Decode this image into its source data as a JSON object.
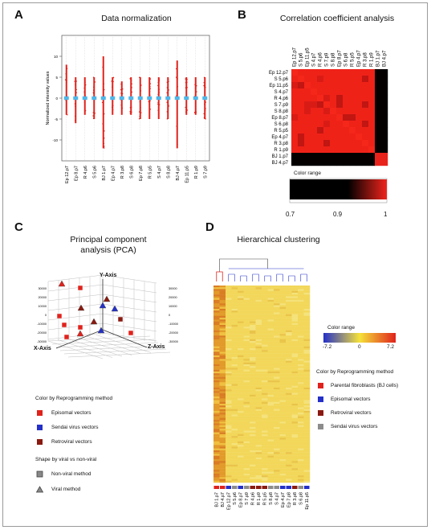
{
  "panels": {
    "a": {
      "letter": "A",
      "title": "Data normalization",
      "ylabel": "Normalized intensity values"
    },
    "b": {
      "letter": "B",
      "title": "Correlation coefficient analysis",
      "color_range_label": "Color range",
      "color_range_ticks": [
        "0.7",
        "0.9",
        "1"
      ]
    },
    "c": {
      "letter": "C",
      "title_line1": "Principal component",
      "title_line2": "analysis (PCA)",
      "y_axis": "Y-Axis",
      "x_axis": "X-Axis",
      "z_axis": "Z-Axis",
      "color_legend_title": "Color by Reprogramming method",
      "color_legend": [
        {
          "label": "Episomal vectors",
          "color": "#e0221c"
        },
        {
          "label": "Sendai virus vectors",
          "color": "#2430c8"
        },
        {
          "label": "Retroviral vectors",
          "color": "#8a1a10"
        }
      ],
      "shape_legend_title": "Shape  by viral vs non-viral",
      "shape_legend": [
        {
          "label": "Non-viral method",
          "shape": "square"
        },
        {
          "label": "Viral method",
          "shape": "triangle"
        }
      ]
    },
    "d": {
      "letter": "D",
      "title": "Hierarchical clustering",
      "color_range_label": "Color range",
      "color_range_ticks": [
        "-7.2",
        "0",
        "7.2"
      ],
      "legend_title": "Color by Reprogramming method",
      "legend": [
        {
          "label": "Parental fibroblasts (BJ cells)",
          "color": "#e0221c"
        },
        {
          "label": "Episomal vectors",
          "color": "#2430c8"
        },
        {
          "label": "Retroviral vectors",
          "color": "#8a1a10"
        },
        {
          "label": "Sendai virus vectors",
          "color": "#8c8c8c"
        }
      ]
    }
  },
  "chart_data": [
    {
      "panel": "A",
      "type": "scatter",
      "title": "Data normalization",
      "ylabel": "Normalized intensity values",
      "yticks": [
        "-10",
        "-5",
        "0",
        "5",
        "10"
      ],
      "ylim": [
        -15,
        15
      ],
      "categories": [
        "Ep 12.p7",
        "Ep 8.p7",
        "R 4.p6",
        "S 5.p6",
        "BJ 1.p7",
        "Ep 4.p7",
        "R 3.p8",
        "S 6.p8",
        "Ep 7.p8",
        "R 5.p5",
        "S 4.p7",
        "S 8.p8",
        "BJ 4.p7",
        "Ep 11.p5",
        "R 1.p9",
        "S 7.p9"
      ],
      "median": [
        0,
        0,
        0,
        0,
        0,
        0,
        0,
        0,
        0,
        0,
        0,
        0,
        0,
        0,
        0,
        0
      ],
      "spread_low": [
        -4,
        -6,
        -4,
        -5,
        -12,
        -4,
        -4,
        -4,
        -5,
        -5,
        -5,
        -5,
        -12,
        -4,
        -4,
        -5
      ],
      "spread_high": [
        8,
        5,
        5,
        5,
        10,
        5,
        4,
        5,
        5,
        5,
        5,
        5,
        9,
        5,
        5,
        5
      ]
    },
    {
      "panel": "B",
      "type": "heatmap",
      "title": "Correlation coefficient analysis",
      "rows": [
        "Ep 12.p7",
        "S 5.p6",
        "Ep 11.p5",
        "S 4.p7",
        "R 4.p6",
        "S 7.p9",
        "S 8.p8",
        "Ep 8.p7",
        "S 6.p8",
        "R 5.p5",
        "Ep 4.p7",
        "R 3.p8",
        "R 1.p9",
        "BJ 1.p7",
        "BJ 4.p7"
      ],
      "columns": [
        "Ep 12.p7",
        "S 5.p6",
        "Ep 11.p5",
        "S 4.p7",
        "R 4.p6",
        "S 7.p9",
        "S 8.p8",
        "Ep 8.p7",
        "S 6.p8",
        "R 5.p5",
        "Ep 4.p7",
        "R 3.p8",
        "R 1.p9",
        "BJ 1.p7",
        "BJ 4.p7"
      ],
      "color_range": [
        0.7,
        1.0
      ],
      "color_ticks": [
        0.7,
        0.9,
        1
      ],
      "group_similarity": "iPSC samples correlate highly among each other (red); BJ parental fibroblast samples correlate only with each other"
    },
    {
      "panel": "C",
      "type": "scatter",
      "title": "Principal component analysis (PCA)",
      "xlabel": "X-Axis",
      "ylabel": "Y-Axis",
      "zlabel": "Z-Axis",
      "y_ticks": [
        "-30000",
        "-20000",
        "-10000",
        "0",
        "10000",
        "20000",
        "30000"
      ],
      "series": [
        {
          "name": "Episomal vectors",
          "shape": "square"
        },
        {
          "name": "Sendai virus vectors",
          "shape": "triangle"
        },
        {
          "name": "Retroviral vectors",
          "shape": "triangle"
        }
      ]
    },
    {
      "panel": "D",
      "type": "heatmap",
      "title": "Hierarchical clustering",
      "columns": [
        "BJ 1.p7",
        "BJ 4.p7",
        "Ep 12.p7",
        "S 5.p6",
        "Ep 8.p7",
        "S 7.p9",
        "R 4.p6",
        "R 1.p9",
        "R 5.p5",
        "S 8.p8",
        "S 4.p7",
        "Ep 4.p7",
        "Ep 7.p8",
        "R 3.p8",
        "S 6.p8",
        "Ep 11.p5"
      ],
      "column_groups": [
        "red",
        "red",
        "blue",
        "gray",
        "blue",
        "gray",
        "brown",
        "brown",
        "brown",
        "gray",
        "gray",
        "blue",
        "blue",
        "brown",
        "gray",
        "blue"
      ],
      "color_range": [
        -7.2,
        7.2
      ],
      "color_ticks": [
        -7.2,
        0,
        7.2
      ]
    }
  ]
}
